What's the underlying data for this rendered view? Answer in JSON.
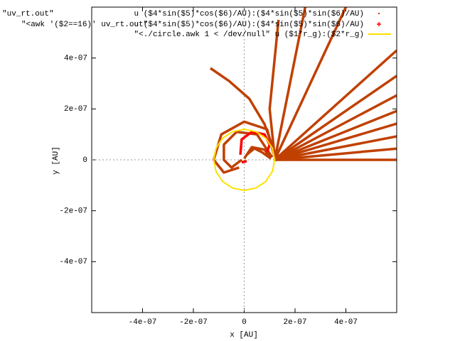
{
  "chart_data": {
    "type": "line",
    "xlabel": "x [AU]",
    "ylabel": "y [AU]",
    "key_sources": [
      "\"uv_rt.out\"",
      "\"<awk '($2==16)' uv_rt.out\""
    ],
    "xlim": [
      -6e-07,
      6e-07
    ],
    "ylim": [
      -6e-07,
      6e-07
    ],
    "xticks": [
      {
        "value": -4e-07,
        "label": "-4e-07"
      },
      {
        "value": -2e-07,
        "label": "-2e-07"
      },
      0,
      {
        "value": 2e-07,
        "label": "2e-07"
      },
      {
        "value": 4e-07,
        "label": "4e-07"
      }
    ],
    "yticks": [
      {
        "value": -4e-07,
        "label": "-4e-07"
      },
      {
        "value": -2e-07,
        "label": "-2e-07"
      },
      0,
      {
        "value": 2e-07,
        "label": "2e-07"
      },
      {
        "value": 4e-07,
        "label": "4e-07"
      }
    ],
    "zero_axes": true,
    "series": [
      {
        "name": "u ($4*sin($5)*cos($6)/AU):($4*sin($5)*sin($6)/AU)",
        "color": "#c04000",
        "marker": "dot",
        "x": [
          1.2e-07,
          6e-07,
          null,
          1.2e-07,
          6e-07,
          null,
          1.2e-07,
          6e-07,
          null,
          1.2e-07,
          6e-07,
          null,
          1.2e-07,
          6e-07,
          null,
          1.2e-07,
          6e-07,
          null,
          1.2e-07,
          6e-07,
          null,
          1.2e-07,
          6e-07,
          null,
          1.2e-07,
          4e-07,
          null,
          1.2e-07,
          2.4e-07,
          null,
          1.2e-07,
          1e-07,
          1.35e-07,
          null,
          -1.33e-07,
          -6e-08,
          2e-08,
          8e-08,
          1.2e-07,
          null,
          1.2e-07,
          9e-08,
          0,
          -9e-08,
          -1.2e-07,
          -8e-08,
          -2e-08,
          null,
          1.1e-07,
          5e-08,
          -3e-08,
          -8e-08,
          -8e-08,
          -5e-08,
          -1e-08,
          null,
          0,
          3e-08,
          8e-08,
          1e-07,
          null,
          1e-08,
          4e-08,
          7e-08,
          1.05e-07
        ],
        "y": [
          0,
          0,
          null,
          0,
          4.4e-08,
          null,
          0,
          9.2e-08,
          null,
          0,
          1.42e-07,
          null,
          0,
          1.92e-07,
          null,
          0,
          2.53e-07,
          null,
          0,
          3.3e-07,
          null,
          0,
          4.3e-07,
          null,
          0,
          6e-07,
          null,
          0,
          6e-07,
          null,
          1e-08,
          2e-07,
          5.5e-07,
          null,
          3.6e-07,
          3.1e-07,
          2.4e-07,
          1.4e-07,
          3e-08,
          null,
          1e-08,
          1.2e-07,
          1.5e-07,
          1e-07,
          0,
          -5e-08,
          -3e-08,
          null,
          1e-08,
          1e-07,
          1.1e-07,
          6e-08,
          0,
          -3e-08,
          0,
          null,
          5e-09,
          5e-08,
          4e-08,
          1e-08,
          null,
          2e-08,
          4.5e-08,
          3e-08,
          5e-09
        ]
      },
      {
        "name": "u ($4*sin($5)*cos($6)/AU):($4*sin($5)*sin($6)/AU)",
        "color": "#ff0000",
        "marker": "plus",
        "x": [
          -1.5e-08,
          -1e-08,
          3e-08,
          8e-08,
          1e-07,
          9e-08,
          null,
          -1e-08,
          1e-08
        ],
        "y": [
          2e-08,
          8e-08,
          1.1e-07,
          1e-07,
          6e-08,
          3e-08,
          null,
          -1e-08,
          -5e-09
        ]
      },
      {
        "name": "\"<./circle.awk 1 < /dev/null\" u ($1*r_g):($2*r_g)",
        "color": "#ffe000",
        "marker": "line",
        "x": [
          1.2e-07,
          1.109e-07,
          8.49e-08,
          4.59e-08,
          0,
          -4.59e-08,
          -8.49e-08,
          -1.109e-07,
          -1.2e-07,
          -1.109e-07,
          -8.49e-08,
          -4.59e-08,
          0,
          4.59e-08,
          8.49e-08,
          1.109e-07,
          1.2e-07
        ],
        "y": [
          0,
          4.59e-08,
          8.49e-08,
          1.109e-07,
          1.2e-07,
          1.109e-07,
          8.49e-08,
          4.59e-08,
          0,
          -4.59e-08,
          -8.49e-08,
          -1.109e-07,
          -1.2e-07,
          -1.109e-07,
          -8.49e-08,
          -4.59e-08,
          0
        ]
      }
    ]
  }
}
